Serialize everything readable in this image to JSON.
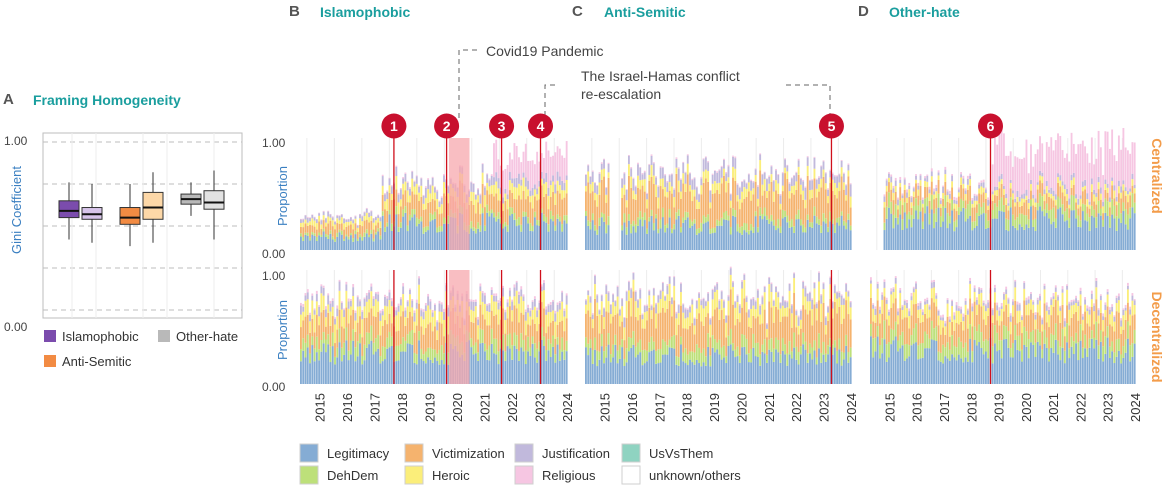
{
  "panels": {
    "A": {
      "letter": "A",
      "title": "Framing Homogeneity"
    },
    "B": {
      "letter": "B",
      "title": "Islamophobic"
    },
    "C": {
      "letter": "C",
      "title": "Anti-Semitic"
    },
    "D": {
      "letter": "D",
      "title": "Other-hate"
    }
  },
  "colors": {
    "panel_title": "#1a9e9e",
    "axis_label_blue": "#3a7fc1",
    "row_label_orange": "#f39c4a",
    "event_marker": "#c8102e",
    "event_line": "#d0101c",
    "covid_shade": "#f7a8ae"
  },
  "annotations": {
    "covid": "Covid19 Pandemic",
    "israel_line1": "The Israel-Hamas conflict",
    "israel_line2": "re-escalation"
  },
  "markers": [
    "1",
    "2",
    "3",
    "4",
    "5",
    "6"
  ],
  "row_labels": {
    "top": "Centralized",
    "bottom": "Decentralized"
  },
  "proportion": {
    "ylabel": "Proportion",
    "ticks": [
      "0.00",
      "1.00"
    ]
  },
  "years": [
    "2015",
    "2016",
    "2017",
    "2018",
    "2019",
    "2020",
    "2021",
    "2022",
    "2023",
    "2024"
  ],
  "legend_a": [
    {
      "label": "Islamophobic",
      "color": "#7b4cad"
    },
    {
      "label": "Other-hate",
      "color": "#b9b9b9"
    },
    {
      "label": "Anti-Semitic",
      "color": "#f28b43"
    }
  ],
  "legend_main": [
    {
      "label": "Legitimacy",
      "color": "#85acd4"
    },
    {
      "label": "Victimization",
      "color": "#f5b36e"
    },
    {
      "label": "Justification",
      "color": "#c1b9dc"
    },
    {
      "label": "UsVsThem",
      "color": "#8fd3c1"
    },
    {
      "label": "DehDem",
      "color": "#bde07a"
    },
    {
      "label": "Heroic",
      "color": "#fbee7a"
    },
    {
      "label": "Religious",
      "color": "#f6c6e2"
    },
    {
      "label": "unknown/others",
      "color": "#ffffff"
    }
  ],
  "chart_data": [
    {
      "type": "box",
      "ylabel": "Gini Coefficient",
      "y_ticks": [
        "0.00",
        "1.00"
      ],
      "ylim": [
        0,
        1
      ],
      "boxes": [
        {
          "group": "Islamophobic",
          "sub": "Centralized",
          "color": "#7b4cad",
          "whisker_low": 0.42,
          "q1": 0.55,
          "median": 0.59,
          "q3": 0.65,
          "whisker_high": 0.76
        },
        {
          "group": "Islamophobic",
          "sub": "Decentralized",
          "color": "#d7c4ea",
          "whisker_low": 0.4,
          "q1": 0.54,
          "median": 0.57,
          "q3": 0.61,
          "whisker_high": 0.75
        },
        {
          "group": "Anti-Semitic",
          "sub": "Centralized",
          "color": "#f28b43",
          "whisker_low": 0.38,
          "q1": 0.51,
          "median": 0.55,
          "q3": 0.61,
          "whisker_high": 0.75
        },
        {
          "group": "Anti-Semitic",
          "sub": "Decentralized",
          "color": "#fdd8a8",
          "whisker_low": 0.4,
          "q1": 0.54,
          "median": 0.61,
          "q3": 0.7,
          "whisker_high": 0.82
        },
        {
          "group": "Other-hate",
          "sub": "Centralized",
          "color": "#b9b9b9",
          "whisker_low": 0.56,
          "q1": 0.63,
          "median": 0.66,
          "q3": 0.69,
          "whisker_high": 0.76
        },
        {
          "group": "Other-hate",
          "sub": "Decentralized",
          "color": "#e2e2e2",
          "whisker_low": 0.42,
          "q1": 0.6,
          "median": 0.64,
          "q3": 0.71,
          "whisker_high": 0.83
        }
      ]
    },
    {
      "type": "bar",
      "stacked": true,
      "x_range": [
        "2014-10",
        "2024-06"
      ],
      "ylim": [
        0,
        1
      ],
      "categories": [
        "Legitimacy",
        "DehDem",
        "Victimization",
        "Heroic",
        "Justification",
        "Religious",
        "UsVsThem",
        "unknown/others"
      ],
      "panels": [
        {
          "panel": "Islamophobic",
          "row": "Centralized",
          "means": {
            "Legitimacy": 0.22,
            "DehDem": 0.05,
            "Victimization": 0.15,
            "Heroic": 0.08,
            "Justification": 0.06,
            "Religious": 0.04
          }
        },
        {
          "panel": "Anti-Semitic",
          "row": "Centralized",
          "means": {
            "Legitimacy": 0.22,
            "DehDem": 0.06,
            "Victimization": 0.25,
            "Heroic": 0.08,
            "Justification": 0.08,
            "Religious": 0.01
          }
        },
        {
          "panel": "Other-hate",
          "row": "Centralized",
          "means": {
            "Legitimacy": 0.28,
            "DehDem": 0.1,
            "Victimization": 0.1,
            "Heroic": 0.05,
            "Justification": 0.04,
            "Religious": 0.25
          }
        },
        {
          "panel": "Islamophobic",
          "row": "Decentralized",
          "means": {
            "Legitimacy": 0.28,
            "DehDem": 0.1,
            "Victimization": 0.18,
            "Heroic": 0.12,
            "Justification": 0.06,
            "Religious": 0.02
          }
        },
        {
          "panel": "Anti-Semitic",
          "row": "Decentralized",
          "means": {
            "Legitimacy": 0.25,
            "DehDem": 0.1,
            "Victimization": 0.25,
            "Heroic": 0.12,
            "Justification": 0.06,
            "Religious": 0.01
          }
        },
        {
          "panel": "Other-hate",
          "row": "Decentralized",
          "means": {
            "Legitimacy": 0.3,
            "DehDem": 0.12,
            "Victimization": 0.18,
            "Heroic": 0.1,
            "Justification": 0.04,
            "Religious": 0.02
          }
        }
      ],
      "events": [
        {
          "label": "1",
          "panel": "Islamophobic",
          "date": "2018-03"
        },
        {
          "label": "2",
          "panel": "Islamophobic",
          "date": "2020-02"
        },
        {
          "label": "3",
          "panel": "Islamophobic",
          "date": "2022-02"
        },
        {
          "label": "4",
          "panel": "Islamophobic",
          "date": "2023-07"
        },
        {
          "label": "5",
          "panel": "Anti-Semitic",
          "date": "2023-10"
        },
        {
          "label": "6",
          "panel": "Other-hate",
          "date": "2019-03"
        }
      ],
      "shaded_period": {
        "panel": "Islamophobic",
        "from": "2020-03",
        "to": "2020-12",
        "label": "Covid19 Pandemic"
      }
    }
  ]
}
